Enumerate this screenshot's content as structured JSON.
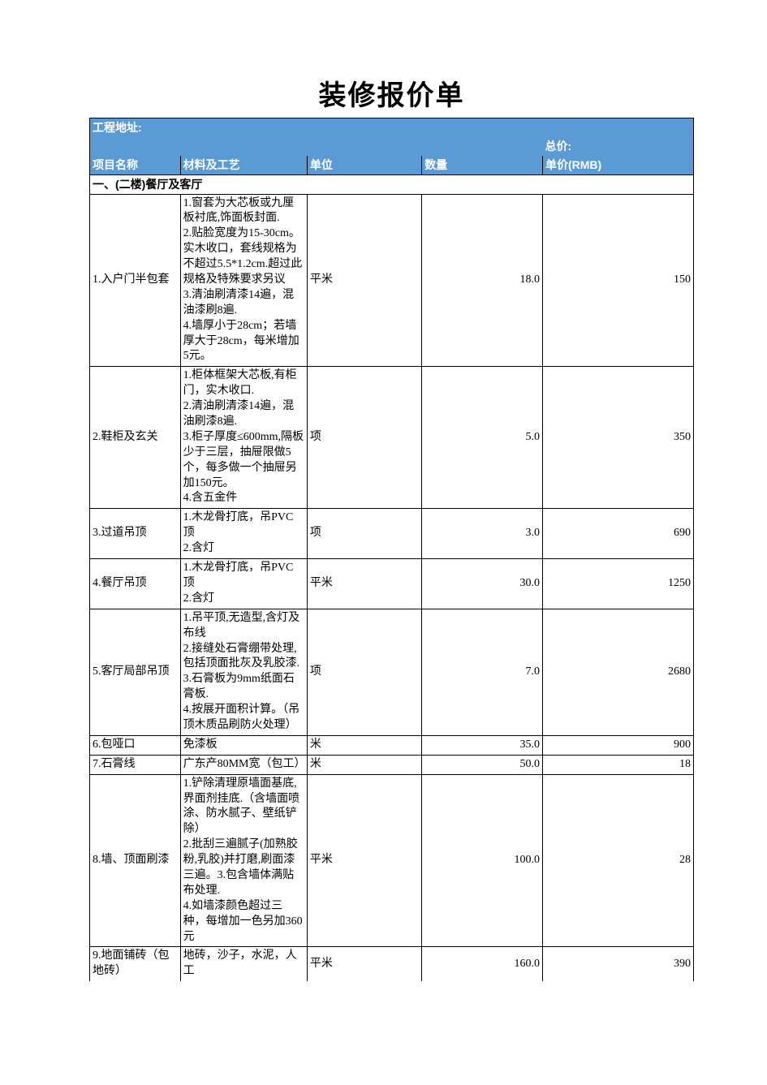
{
  "title": "装修报价单",
  "labels": {
    "project_address": "工程地址:",
    "total_price": "总价:"
  },
  "columns": {
    "c1": "项目名称",
    "c2": "材料及工艺",
    "c3": "单位",
    "c4": "数量",
    "c5": "单价(RMB)"
  },
  "section1": {
    "heading": "一、(二楼)餐厅及客厅"
  },
  "rows": [
    {
      "name": "1.入户门半包套",
      "desc": "1.窗套为大芯板或九厘板衬底,饰面板封面.\n2.贴脸宽度为15-30cm。实木收口，套线规格为不超过5.5*1.2cm.超过此规格及特殊要求另议\n3.清油刷清漆14遍，混油漆刷8遍.\n4.墙厚小于28cm；若墙厚大于28cm，每米增加5元。",
      "unit": "平米",
      "qty": "18.0",
      "price": "150"
    },
    {
      "name": "2.鞋柜及玄关",
      "desc": "1.柜体框架大芯板,有柜门，实木收口.\n2.清油刷清漆14遍，混油刷漆8遍.\n3.柜子厚度≤600mm,隔板少于三层，抽屉限做5个，每多做一个抽屉另加150元。\n4.含五金件",
      "unit": "项",
      "qty": "5.0",
      "price": "350"
    },
    {
      "name": "3.过道吊顶",
      "desc": "1.木龙骨打底，吊PVC顶\n2.含灯",
      "unit": "项",
      "qty": "3.0",
      "price": "690"
    },
    {
      "name": "4.餐厅吊顶",
      "desc": "1.木龙骨打底，吊PVC顶\n2.含灯",
      "unit": "平米",
      "qty": "30.0",
      "price": "1250"
    },
    {
      "name": "5.客厅局部吊顶",
      "desc": "1.吊平顶,无造型,含灯及布线\n2.接缝处石膏绷带处理,包括顶面批灰及乳胶漆.\n3.石膏板为9mm纸面石膏板.\n4.按展开面积计算。（吊顶木质品刷防火处理）",
      "unit": "项",
      "qty": "7.0",
      "price": "2680"
    },
    {
      "name": "6.包哑口",
      "desc": "免漆板",
      "unit": "米",
      "qty": "35.0",
      "price": "900"
    },
    {
      "name": "7.石膏线",
      "desc": "广东产80MM宽（包工）",
      "unit": "米",
      "qty": "50.0",
      "price": "18"
    },
    {
      "name": "8.墙、顶面刷漆",
      "desc": "1.铲除清理原墙面基底,界面剂挂底.（含墙面喷涂、防水腻子、壁纸铲除）\n2.批刮三遍腻子(加熟胶粉,乳胶)并打磨,刷面漆三遍。3.包含墙体满贴布处理.\n4.如墙漆颜色超过三种，每增加一色另加360元",
      "unit": "平米",
      "qty": "100.0",
      "price": "28"
    },
    {
      "name": "9.地面铺砖（包地砖）",
      "desc": "地砖，沙子，水泥，人工",
      "unit": "平米",
      "qty": "160.0",
      "price": "390"
    }
  ]
}
